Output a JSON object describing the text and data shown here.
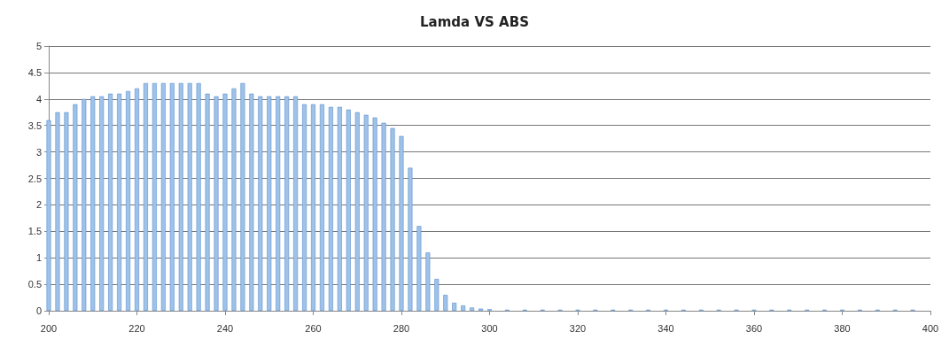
{
  "chart_data": {
    "type": "bar",
    "title": "Lamda VS ABS",
    "x": [
      200,
      202,
      204,
      206,
      208,
      210,
      212,
      214,
      216,
      218,
      220,
      222,
      224,
      226,
      228,
      230,
      232,
      234,
      236,
      238,
      240,
      242,
      244,
      246,
      248,
      250,
      252,
      254,
      256,
      258,
      260,
      262,
      264,
      266,
      268,
      270,
      272,
      274,
      276,
      278,
      280,
      282,
      284,
      286,
      288,
      290,
      292,
      294,
      296,
      298,
      300,
      304,
      308,
      312,
      316,
      320,
      324,
      328,
      332,
      336,
      340,
      344,
      348,
      352,
      356,
      360,
      364,
      368,
      372,
      376,
      380,
      384,
      388,
      392,
      396
    ],
    "values": [
      3.6,
      3.75,
      3.75,
      3.9,
      4.0,
      4.05,
      4.05,
      4.1,
      4.1,
      4.15,
      4.2,
      4.3,
      4.3,
      4.3,
      4.3,
      4.3,
      4.3,
      4.3,
      4.1,
      4.05,
      4.1,
      4.2,
      4.3,
      4.1,
      4.05,
      4.05,
      4.05,
      4.05,
      4.05,
      3.9,
      3.9,
      3.9,
      3.85,
      3.85,
      3.8,
      3.75,
      3.7,
      3.65,
      3.55,
      3.45,
      3.3,
      2.7,
      1.6,
      1.1,
      0.6,
      0.3,
      0.15,
      0.1,
      0.06,
      0.04,
      0.03,
      0.02,
      0.02,
      0.02,
      0.02,
      0.02,
      0.02,
      0.02,
      0.02,
      0.02,
      0.02,
      0.02,
      0.02,
      0.02,
      0.02,
      0.02,
      0.02,
      0.02,
      0.02,
      0.02,
      0.02,
      0.02,
      0.02,
      0.02,
      0.02
    ],
    "color": "#9fc2e8",
    "xlim": [
      200,
      400
    ],
    "xticks": [
      200,
      220,
      240,
      260,
      280,
      300,
      320,
      340,
      360,
      380,
      400
    ],
    "ylim": [
      0,
      5
    ],
    "yticks": [
      0,
      0.5,
      1,
      1.5,
      2,
      2.5,
      3,
      3.5,
      4,
      4.5,
      5
    ],
    "grid": "y"
  }
}
